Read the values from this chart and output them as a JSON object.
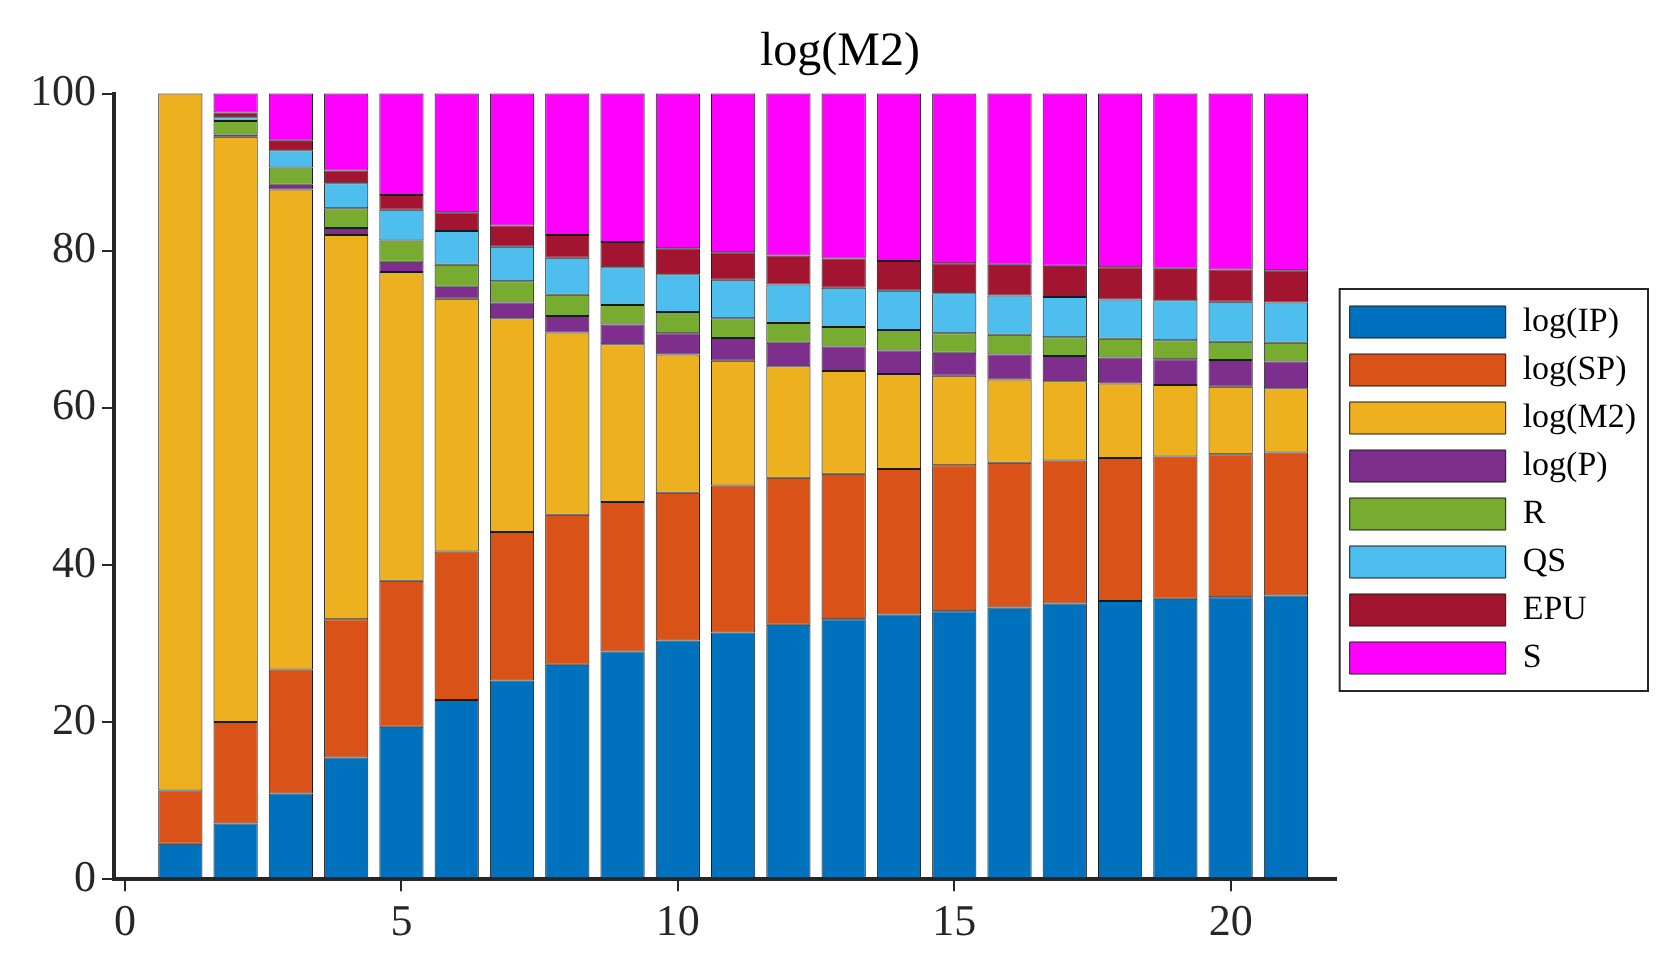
{
  "chart_data": {
    "type": "bar",
    "title": "log(M2)",
    "stacked": true,
    "legend": "right",
    "x": [
      1,
      2,
      3,
      4,
      5,
      6,
      7,
      8,
      9,
      10,
      11,
      12,
      13,
      14,
      15,
      16,
      17,
      18,
      19,
      20,
      21
    ],
    "xlim": [
      -0.2,
      21.9
    ],
    "xticks": [
      0,
      5,
      10,
      15,
      20
    ],
    "ylim": [
      0,
      100
    ],
    "yticks": [
      0,
      20,
      40,
      60,
      80,
      100
    ],
    "series": [
      {
        "name": "log(IP)",
        "color": "#0072bd",
        "values": [
          4.5,
          7.1,
          10.9,
          15.5,
          19.4,
          22.8,
          25.3,
          27.3,
          29.0,
          30.4,
          31.4,
          32.4,
          33.1,
          33.7,
          34.1,
          34.6,
          35.1,
          35.4,
          35.7,
          35.9,
          36.1
        ]
      },
      {
        "name": "log(SP)",
        "color": "#d95319",
        "values": [
          6.8,
          12.9,
          15.8,
          17.6,
          18.6,
          18.9,
          18.9,
          19.1,
          19.0,
          18.8,
          18.7,
          18.7,
          18.5,
          18.5,
          18.6,
          18.4,
          18.2,
          18.2,
          18.1,
          18.2,
          18.2
        ]
      },
      {
        "name": "log(M2)",
        "color": "#edb120",
        "values": [
          88.7,
          74.5,
          61.1,
          48.9,
          39.3,
          32.2,
          27.2,
          23.2,
          20.1,
          17.6,
          15.9,
          14.2,
          13.1,
          12.1,
          11.4,
          10.6,
          10.1,
          9.5,
          9.1,
          8.6,
          8.2
        ]
      },
      {
        "name": "log(P)",
        "color": "#7e2f8e",
        "values": [
          0,
          0.3,
          0.6,
          0.9,
          1.3,
          1.5,
          2.0,
          2.1,
          2.5,
          2.7,
          2.9,
          3.0,
          3.1,
          3.0,
          2.9,
          3.2,
          3.2,
          3.3,
          3.3,
          3.4,
          3.4
        ]
      },
      {
        "name": "R",
        "color": "#77ac30",
        "values": [
          0,
          1.7,
          2.2,
          2.5,
          2.7,
          2.8,
          2.7,
          2.7,
          2.5,
          2.7,
          2.5,
          2.5,
          2.5,
          2.6,
          2.5,
          2.5,
          2.4,
          2.4,
          2.4,
          2.3,
          2.4
        ]
      },
      {
        "name": "QS",
        "color": "#4dbeee",
        "values": [
          0,
          0.5,
          2.2,
          3.2,
          3.9,
          4.3,
          4.4,
          4.7,
          4.8,
          4.8,
          4.9,
          4.9,
          5.0,
          5.0,
          5.1,
          5.0,
          5.1,
          5.0,
          5.1,
          5.1,
          5.1
        ]
      },
      {
        "name": "EPU",
        "color": "#a2142f",
        "values": [
          0,
          0.6,
          1.2,
          1.6,
          1.9,
          2.4,
          2.7,
          2.9,
          3.2,
          3.3,
          3.5,
          3.7,
          3.7,
          3.8,
          3.8,
          3.9,
          4.0,
          4.1,
          4.0,
          4.1,
          4.1
        ]
      },
      {
        "name": "S",
        "color": "#ff00ff",
        "values": [
          0,
          2.4,
          6.0,
          9.8,
          12.9,
          15.1,
          16.8,
          18.0,
          18.9,
          19.7,
          20.2,
          20.6,
          21.0,
          21.3,
          21.6,
          21.8,
          21.9,
          22.1,
          22.3,
          22.4,
          22.5
        ]
      }
    ]
  }
}
